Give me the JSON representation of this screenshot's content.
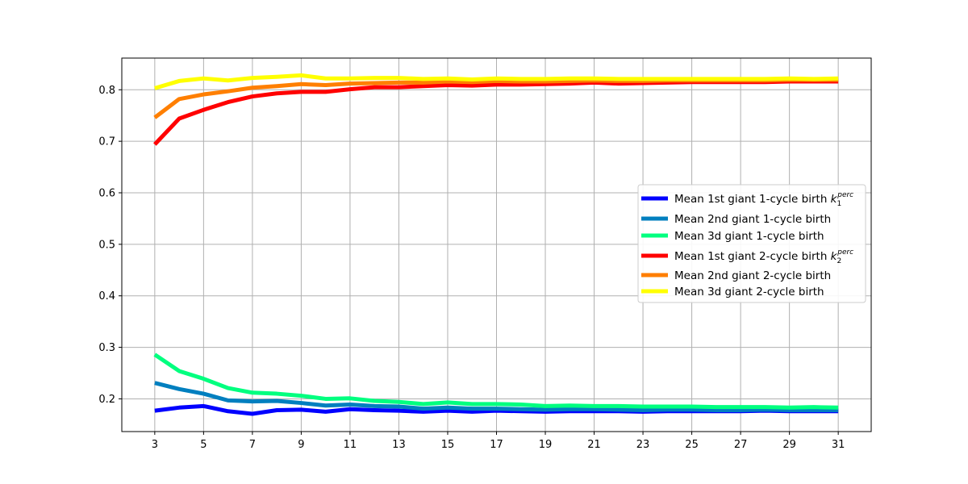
{
  "chart_data": {
    "type": "line",
    "title": "",
    "xlabel": "",
    "ylabel": "",
    "xlim": [
      1.65,
      32.35
    ],
    "ylim": [
      0.1365,
      0.8615
    ],
    "x": [
      3,
      4,
      5,
      6,
      7,
      8,
      9,
      10,
      11,
      12,
      13,
      14,
      15,
      16,
      17,
      18,
      19,
      20,
      21,
      22,
      23,
      24,
      25,
      26,
      27,
      28,
      29,
      30,
      31
    ],
    "xticks": [
      3,
      5,
      7,
      9,
      11,
      13,
      15,
      17,
      19,
      21,
      23,
      25,
      27,
      29,
      31
    ],
    "xtick_labels": [
      "3",
      "5",
      "7",
      "9",
      "11",
      "13",
      "15",
      "17",
      "19",
      "21",
      "23",
      "25",
      "27",
      "29",
      "31"
    ],
    "yticks": [
      0.2,
      0.3,
      0.4,
      0.5,
      0.6,
      0.7,
      0.8
    ],
    "ytick_labels": [
      "0.2",
      "0.3",
      "0.4",
      "0.5",
      "0.6",
      "0.7",
      "0.8"
    ],
    "grid": true,
    "legend_position": "center-right",
    "series": [
      {
        "name_main": "Mean 1st giant 1-cycle birth ",
        "name_math": "k",
        "name_sub": "1",
        "name_sup": "perc",
        "color": "#0000ff",
        "values": [
          0.177,
          0.183,
          0.186,
          0.176,
          0.171,
          0.178,
          0.179,
          0.175,
          0.18,
          0.178,
          0.177,
          0.175,
          0.177,
          0.175,
          0.177,
          0.176,
          0.175,
          0.176,
          0.176,
          0.176,
          0.175,
          0.176,
          0.176,
          0.176,
          0.176,
          0.177,
          0.176,
          0.176,
          0.176
        ]
      },
      {
        "name_main": "Mean 2nd giant 1-cycle birth",
        "name_math": "",
        "name_sub": "",
        "name_sup": "",
        "color": "#007fbf",
        "values": [
          0.231,
          0.219,
          0.21,
          0.197,
          0.195,
          0.196,
          0.192,
          0.187,
          0.189,
          0.186,
          0.185,
          0.181,
          0.183,
          0.181,
          0.181,
          0.18,
          0.179,
          0.18,
          0.18,
          0.179,
          0.178,
          0.179,
          0.179,
          0.178,
          0.178,
          0.179,
          0.178,
          0.178,
          0.178
        ]
      },
      {
        "name_main": "Mean 3d giant 1-cycle birth",
        "name_math": "",
        "name_sub": "",
        "name_sup": "",
        "color": "#00ff7f",
        "values": [
          0.286,
          0.254,
          0.239,
          0.221,
          0.212,
          0.21,
          0.206,
          0.2,
          0.201,
          0.196,
          0.194,
          0.19,
          0.193,
          0.19,
          0.19,
          0.189,
          0.186,
          0.187,
          0.186,
          0.186,
          0.185,
          0.185,
          0.185,
          0.184,
          0.184,
          0.184,
          0.183,
          0.184,
          0.183
        ]
      },
      {
        "name_main": "Mean 1st giant 2-cycle birth ",
        "name_math": "k",
        "name_sub": "2",
        "name_sup": "perc",
        "color": "#ff0000",
        "values": [
          0.694,
          0.744,
          0.761,
          0.776,
          0.787,
          0.793,
          0.796,
          0.796,
          0.801,
          0.805,
          0.805,
          0.807,
          0.809,
          0.808,
          0.81,
          0.81,
          0.811,
          0.812,
          0.814,
          0.812,
          0.813,
          0.814,
          0.815,
          0.815,
          0.815,
          0.815,
          0.816,
          0.816,
          0.816
        ]
      },
      {
        "name_main": "Mean 2nd giant 2-cycle birth",
        "name_math": "",
        "name_sub": "",
        "name_sup": "",
        "color": "#ff7f00",
        "values": [
          0.746,
          0.782,
          0.791,
          0.797,
          0.804,
          0.807,
          0.811,
          0.809,
          0.812,
          0.813,
          0.814,
          0.814,
          0.816,
          0.815,
          0.817,
          0.816,
          0.816,
          0.817,
          0.818,
          0.817,
          0.817,
          0.818,
          0.818,
          0.818,
          0.818,
          0.818,
          0.819,
          0.819,
          0.819
        ]
      },
      {
        "name_main": "Mean 3d giant 2-cycle birth",
        "name_math": "",
        "name_sub": "",
        "name_sup": "",
        "color": "#ffff00",
        "values": [
          0.803,
          0.817,
          0.822,
          0.818,
          0.823,
          0.825,
          0.828,
          0.822,
          0.822,
          0.823,
          0.823,
          0.821,
          0.822,
          0.82,
          0.822,
          0.821,
          0.821,
          0.822,
          0.822,
          0.821,
          0.821,
          0.821,
          0.821,
          0.821,
          0.821,
          0.821,
          0.822,
          0.821,
          0.822
        ]
      }
    ]
  }
}
